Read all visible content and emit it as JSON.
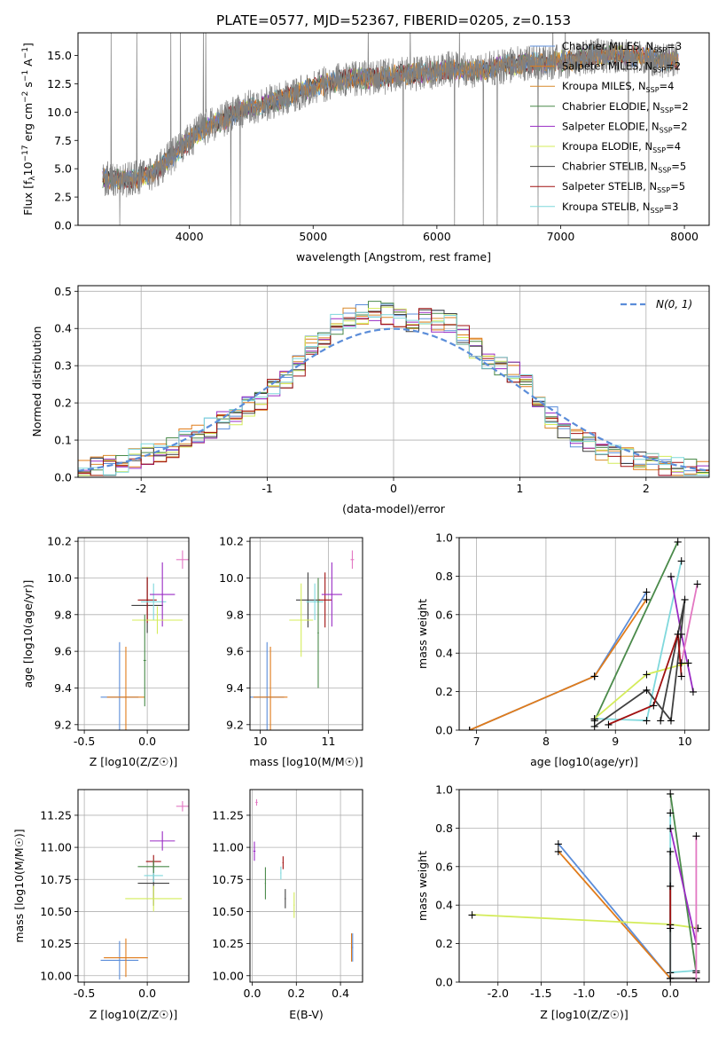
{
  "title": "PLATE=0577, MJD=52367, FIBERID=0205, z=0.153",
  "colors": {
    "Chabrier MILES": "#5b8dd9",
    "Salpeter MILES": "#e07b1a",
    "Kroupa MILES": "#d98a2b",
    "Chabrier ELODIE": "#4a8a4a",
    "Salpeter ELODIE": "#9a2bc4",
    "Kroupa ELODIE": "#d4ec5a",
    "Chabrier STELIB": "#404040",
    "Salpeter STELIB": "#a01010",
    "Kroupa STELIB": "#7fd8dc",
    "spectrum": "#808080",
    "pink": "#e377c2"
  },
  "legend_spectrum": [
    "Chabrier MILES, N_SSP=3",
    "Salpeter MILES, N_SSP=2",
    "Kroupa MILES, N_SSP=4",
    "Chabrier ELODIE, N_SSP=2",
    "Salpeter ELODIE, N_SSP=2",
    "Kroupa ELODIE, N_SSP=4",
    "Chabrier STELIB, N_SSP=5",
    "Salpeter STELIB, N_SSP=5",
    "Kroupa STELIB, N_SSP=3"
  ],
  "chart_data": [
    {
      "type": "line",
      "panel": "spectrum",
      "xlabel": "wavelength [Angstrom, rest frame]",
      "ylabel": "Flux [f_λ10^-17 erg cm^-2 s^-1 A^-1]",
      "xlim": [
        3100,
        8200
      ],
      "ylim": [
        0,
        17
      ],
      "xticks": [
        4000,
        5000,
        6000,
        7000,
        8000
      ],
      "yticks": [
        0.0,
        2.5,
        5.0,
        7.5,
        10.0,
        12.5,
        15.0
      ],
      "x": [
        3300,
        3500,
        3700,
        3900,
        4100,
        4300,
        4500,
        4700,
        4900,
        5100,
        5300,
        5500,
        5700,
        5900,
        6100,
        6300,
        6500,
        6700,
        6900,
        7100,
        7300,
        7500,
        7700,
        7900
      ],
      "y": [
        4.2,
        4.0,
        4.5,
        6.5,
        8.5,
        9.5,
        10.5,
        11.0,
        11.8,
        12.5,
        13.0,
        13.0,
        13.3,
        13.5,
        13.8,
        13.6,
        14.0,
        14.3,
        14.4,
        14.6,
        15.0,
        15.0,
        14.8,
        14.5
      ],
      "legend_loc": "upper right"
    },
    {
      "type": "histogram",
      "panel": "residuals",
      "xlabel": "(data-model)/error",
      "ylabel": "Normed distribution",
      "xlim": [
        -2.5,
        2.5
      ],
      "ylim": [
        0,
        0.515
      ],
      "xticks": [
        -2,
        -1,
        0,
        1,
        2
      ],
      "yticks": [
        0.0,
        0.1,
        0.2,
        0.3,
        0.4,
        0.5
      ],
      "bin_width": 0.1,
      "bin_start": -2.5,
      "values": [
        0.02,
        0.025,
        0.03,
        0.04,
        0.05,
        0.06,
        0.07,
        0.08,
        0.1,
        0.115,
        0.13,
        0.15,
        0.17,
        0.19,
        0.21,
        0.235,
        0.26,
        0.3,
        0.35,
        0.38,
        0.41,
        0.43,
        0.44,
        0.45,
        0.44,
        0.43,
        0.42,
        0.43,
        0.42,
        0.41,
        0.38,
        0.35,
        0.32,
        0.3,
        0.28,
        0.25,
        0.2,
        0.16,
        0.13,
        0.11,
        0.09,
        0.07,
        0.06,
        0.05,
        0.04,
        0.035,
        0.03,
        0.025,
        0.02,
        0.015
      ],
      "gaussian_label": "N(0, 1)",
      "legend_loc": "upper right"
    },
    {
      "type": "scatter",
      "panel": "age-vs-Z",
      "xlabel": "Z [log10(Z/Z☉)]",
      "ylabel": "age [log10(age/yr)]",
      "xlim": [
        -0.55,
        0.33
      ],
      "ylim": [
        9.17,
        10.22
      ],
      "xticks": [
        -0.5,
        0.0
      ],
      "yticks": [
        9.2,
        9.4,
        9.6,
        9.8,
        10.0,
        10.2
      ]
    },
    {
      "type": "scatter",
      "panel": "age-vs-mass",
      "xlabel": "mass [log10(M/M☉)]",
      "xlim": [
        9.85,
        11.5
      ],
      "ylim": [
        9.17,
        10.22
      ],
      "xticks": [
        10,
        11
      ],
      "yticks": [
        9.2,
        9.4,
        9.6,
        9.8,
        10.0,
        10.2
      ]
    },
    {
      "type": "line",
      "panel": "mass-weight-vs-age",
      "xlabel": "age [log10(age/yr)]",
      "ylabel": "mass weight",
      "xlim": [
        6.75,
        10.35
      ],
      "ylim": [
        0,
        1.0
      ],
      "xticks": [
        7,
        8,
        9,
        10
      ],
      "yticks": [
        0.0,
        0.2,
        0.4,
        0.6,
        0.8,
        1.0
      ]
    },
    {
      "type": "scatter",
      "panel": "mass-vs-Z",
      "xlabel": "Z [log10(Z/Z☉)]",
      "ylabel": "mass [log10(M/M☉)]",
      "xlim": [
        -0.55,
        0.33
      ],
      "ylim": [
        9.95,
        11.45
      ],
      "xticks": [
        -0.5,
        0.0
      ],
      "yticks": [
        10.0,
        10.25,
        10.5,
        10.75,
        11.0,
        11.25
      ]
    },
    {
      "type": "scatter",
      "panel": "mass-vs-ebv",
      "xlabel": "E(B-V)",
      "xlim": [
        -0.01,
        0.5
      ],
      "ylim": [
        9.95,
        11.45
      ],
      "xticks": [
        0.0,
        0.2,
        0.4
      ],
      "yticks": [
        10.0,
        10.25,
        10.5,
        10.75,
        11.0,
        11.25
      ]
    },
    {
      "type": "line",
      "panel": "mass-weight-vs-Z",
      "xlabel": "Z [log10(Z/Z☉)]",
      "ylabel": "mass weight",
      "xlim": [
        -2.45,
        0.45
      ],
      "ylim": [
        0,
        1.0
      ],
      "xticks": [
        -2.0,
        -1.5,
        -1.0,
        -0.5,
        0.0
      ],
      "yticks": [
        0.0,
        0.2,
        0.4,
        0.6,
        0.8,
        1.0
      ]
    }
  ],
  "crosses_ageZ": [
    {
      "model": "Chabrier MILES",
      "Z": -0.22,
      "age": 9.35,
      "zerr": 0.3,
      "ageerr": 0.6
    },
    {
      "model": "Salpeter MILES",
      "Z": -0.17,
      "age": 9.35,
      "zerr": 0.3,
      "ageerr": 0.55
    },
    {
      "model": "Chabrier STELIB",
      "Z": 0.0,
      "age": 9.85,
      "zerr": 0.25,
      "ageerr": 0.3
    },
    {
      "model": "Salpeter STELIB",
      "Z": 0.0,
      "age": 9.88,
      "zerr": 0.15,
      "ageerr": 0.25
    },
    {
      "model": "Kroupa STELIB",
      "Z": 0.05,
      "age": 9.87,
      "zerr": 0.2,
      "ageerr": 0.2
    },
    {
      "model": "Salpeter ELODIE",
      "Z": 0.12,
      "age": 9.91,
      "zerr": 0.2,
      "ageerr": 0.35
    },
    {
      "model": "Kroupa ELODIE",
      "Z": 0.08,
      "age": 9.77,
      "zerr": 0.4,
      "ageerr": 0.15
    },
    {
      "model": "Chabrier ELODIE",
      "Z": -0.02,
      "age": 9.55,
      "zerr": 0.02,
      "ageerr": 0.5
    },
    {
      "model": "pink",
      "Z": 0.28,
      "age": 10.1,
      "zerr": 0.1,
      "ageerr": 0.1
    }
  ],
  "crosses_ageMass": [
    {
      "model": "Chabrier MILES",
      "m": 10.1,
      "age": 9.35,
      "merr": 0.5,
      "ageerr": 0.6
    },
    {
      "model": "Salpeter MILES",
      "m": 10.15,
      "age": 9.35,
      "merr": 0.5,
      "ageerr": 0.55
    },
    {
      "model": "Chabrier STELIB",
      "m": 10.7,
      "age": 9.88,
      "merr": 0.35,
      "ageerr": 0.3
    },
    {
      "model": "Salpeter STELIB",
      "m": 10.95,
      "age": 9.88,
      "merr": 0.2,
      "ageerr": 0.3
    },
    {
      "model": "Kroupa STELIB",
      "m": 10.8,
      "age": 9.87,
      "merr": 0.25,
      "ageerr": 0.2
    },
    {
      "model": "Salpeter ELODIE",
      "m": 11.05,
      "age": 9.91,
      "merr": 0.3,
      "ageerr": 0.35
    },
    {
      "model": "Kroupa ELODIE",
      "m": 10.6,
      "age": 9.77,
      "merr": 0.35,
      "ageerr": 0.4
    },
    {
      "model": "Chabrier ELODIE",
      "m": 10.85,
      "age": 9.7,
      "merr": 0.02,
      "ageerr": 0.6
    },
    {
      "model": "pink",
      "m": 11.35,
      "age": 10.1,
      "merr": 0.05,
      "ageerr": 0.1
    }
  ],
  "crosses_massZ": [
    {
      "model": "Chabrier MILES",
      "Z": -0.22,
      "m": 10.12,
      "zerr": 0.3,
      "merr": 0.3
    },
    {
      "model": "Salpeter MILES",
      "Z": -0.17,
      "m": 10.14,
      "zerr": 0.35,
      "merr": 0.3
    },
    {
      "model": "Chabrier STELIB",
      "Z": 0.05,
      "m": 10.72,
      "zerr": 0.25,
      "merr": 0.35
    },
    {
      "model": "Salpeter STELIB",
      "Z": 0.05,
      "m": 10.89,
      "zerr": 0.12,
      "merr": 0.1
    },
    {
      "model": "Kroupa STELIB",
      "Z": 0.05,
      "m": 10.78,
      "zerr": 0.15,
      "merr": 0.1
    },
    {
      "model": "Salpeter ELODIE",
      "Z": 0.12,
      "m": 11.05,
      "zerr": 0.2,
      "merr": 0.15
    },
    {
      "model": "Kroupa ELODIE",
      "Z": 0.05,
      "m": 10.6,
      "zerr": 0.45,
      "merr": 0.2
    },
    {
      "model": "Chabrier ELODIE",
      "Z": 0.05,
      "m": 10.85,
      "zerr": 0.25,
      "merr": 0.1
    },
    {
      "model": "pink",
      "Z": 0.28,
      "m": 11.32,
      "zerr": 0.1,
      "merr": 0.08
    }
  ],
  "crosses_massEbv": [
    {
      "model": "Salpeter ELODIE",
      "e": 0.01,
      "m": 10.97,
      "eerr": 0.01,
      "merr": 0.15
    },
    {
      "model": "pink",
      "e": 0.02,
      "m": 11.35,
      "eerr": 0.01,
      "merr": 0.05
    },
    {
      "model": "Chabrier ELODIE",
      "e": 0.06,
      "m": 10.72,
      "eerr": 0.005,
      "merr": 0.25
    },
    {
      "model": "Kroupa STELIB",
      "e": 0.13,
      "m": 10.8,
      "eerr": 0.005,
      "merr": 0.1
    },
    {
      "model": "Salpeter STELIB",
      "e": 0.14,
      "m": 10.88,
      "eerr": 0.005,
      "merr": 0.1
    },
    {
      "model": "Chabrier STELIB",
      "e": 0.15,
      "m": 10.6,
      "eerr": 0.005,
      "merr": 0.15
    },
    {
      "model": "Kroupa ELODIE",
      "e": 0.19,
      "m": 10.55,
      "eerr": 0.005,
      "merr": 0.2
    },
    {
      "model": "Salpeter MILES",
      "e": 0.45,
      "m": 10.22,
      "eerr": 0.005,
      "merr": 0.22
    },
    {
      "model": "Chabrier MILES",
      "e": 0.455,
      "m": 10.22,
      "eerr": 0.005,
      "merr": 0.22
    }
  ],
  "weight_age_lines": [
    {
      "model": "Chabrier MILES",
      "age": [
        6.9,
        8.7,
        9.45
      ],
      "w": [
        0.0,
        0.28,
        0.72
      ]
    },
    {
      "model": "Salpeter MILES",
      "age": [
        6.9,
        8.7,
        9.45
      ],
      "w": [
        0.0,
        0.28,
        0.68
      ]
    },
    {
      "model": "Chabrier ELODIE",
      "age": [
        8.7,
        9.9
      ],
      "w": [
        0.05,
        0.98
      ]
    },
    {
      "model": "Kroupa STELIB",
      "age": [
        8.7,
        9.45,
        9.95
      ],
      "w": [
        0.06,
        0.05,
        0.88
      ]
    },
    {
      "model": "Salpeter ELODIE",
      "age": [
        9.8,
        9.95,
        10.12
      ],
      "w": [
        0.8,
        0.5,
        0.2
      ]
    },
    {
      "model": "Kroupa ELODIE",
      "age": [
        8.7,
        9.45,
        10.05
      ],
      "w": [
        0.06,
        0.29,
        0.35
      ]
    },
    {
      "model": "Chabrier STELIB",
      "age": [
        8.7,
        9.45,
        9.8,
        10.0,
        9.65
      ],
      "w": [
        0.02,
        0.21,
        0.05,
        0.68,
        0.05
      ]
    },
    {
      "model": "Salpeter STELIB",
      "age": [
        8.9,
        9.55,
        9.9,
        9.95
      ],
      "w": [
        0.03,
        0.13,
        0.5,
        0.28
      ]
    },
    {
      "model": "pink",
      "age": [
        9.95,
        10.18
      ],
      "w": [
        0.35,
        0.76
      ]
    }
  ],
  "weight_Z_lines": [
    {
      "model": "Chabrier MILES",
      "Z": [
        -1.3,
        0.0
      ],
      "w": [
        0.72,
        0.02
      ]
    },
    {
      "model": "Salpeter MILES",
      "Z": [
        -1.3,
        0.0
      ],
      "w": [
        0.68,
        0.02
      ]
    },
    {
      "model": "Kroupa ELODIE",
      "Z": [
        -2.3,
        0.0,
        0.32
      ],
      "w": [
        0.35,
        0.3,
        0.28
      ]
    },
    {
      "model": "Chabrier ELODIE",
      "Z": [
        0.0,
        0.3
      ],
      "w": [
        0.98,
        0.05
      ]
    },
    {
      "model": "Kroupa STELIB",
      "Z": [
        0.0,
        0.0,
        0.3
      ],
      "w": [
        0.88,
        0.05,
        0.06
      ]
    },
    {
      "model": "Salpeter ELODIE",
      "Z": [
        0.0,
        0.3
      ],
      "w": [
        0.8,
        0.2
      ]
    },
    {
      "model": "Chabrier STELIB",
      "Z": [
        0.0,
        0.0,
        0.3
      ],
      "w": [
        0.68,
        0.02,
        0.02
      ]
    },
    {
      "model": "Salpeter STELIB",
      "Z": [
        0.0,
        0.0
      ],
      "w": [
        0.5,
        0.28
      ]
    },
    {
      "model": "pink",
      "Z": [
        0.3,
        0.3
      ],
      "w": [
        0.76,
        0.0
      ]
    }
  ]
}
